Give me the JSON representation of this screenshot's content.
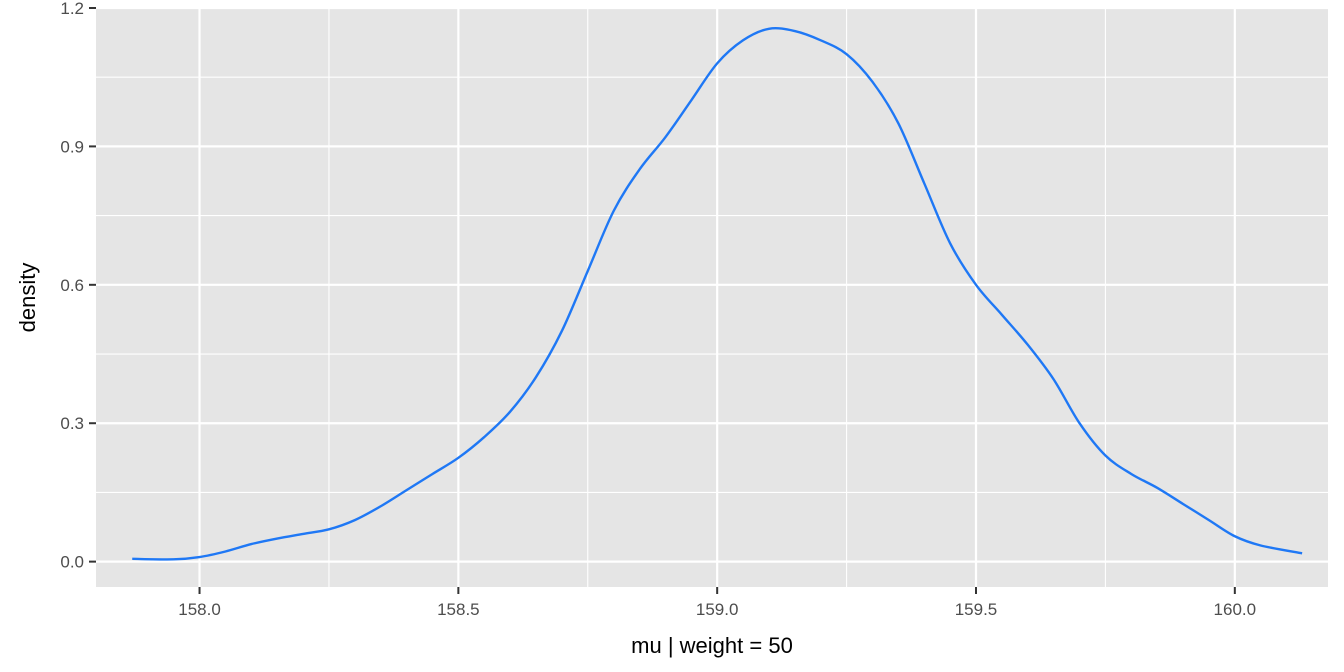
{
  "chart_data": {
    "type": "line",
    "title": "",
    "xlabel": "mu | weight = 50",
    "ylabel": "density",
    "xlim": [
      157.8,
      160.18
    ],
    "ylim": [
      -0.055,
      1.2
    ],
    "x_ticks": [
      158.0,
      158.5,
      159.0,
      159.5,
      160.0
    ],
    "x_tick_labels": [
      "158.0",
      "158.5",
      "159.0",
      "159.5",
      "160.0"
    ],
    "y_ticks": [
      0.0,
      0.3,
      0.6,
      0.9,
      1.2
    ],
    "y_tick_labels": [
      "0.0",
      "0.3",
      "0.6",
      "0.9",
      "1.2"
    ],
    "grid": true,
    "colors": {
      "panel": "#e5e5e5",
      "grid": "#ffffff",
      "line": "#1f78f5"
    },
    "series": [
      {
        "x": [
          157.87,
          157.95,
          158.0,
          158.05,
          158.1,
          158.15,
          158.2,
          158.25,
          158.3,
          158.35,
          158.4,
          158.45,
          158.5,
          158.55,
          158.6,
          158.65,
          158.7,
          158.75,
          158.8,
          158.85,
          158.9,
          158.95,
          159.0,
          159.05,
          159.1,
          159.15,
          159.2,
          159.25,
          159.3,
          159.35,
          159.4,
          159.45,
          159.5,
          159.55,
          159.6,
          159.65,
          159.7,
          159.75,
          159.8,
          159.85,
          159.9,
          159.95,
          160.0,
          160.05,
          160.13
        ],
        "y": [
          0.006,
          0.005,
          0.01,
          0.022,
          0.038,
          0.05,
          0.06,
          0.07,
          0.09,
          0.12,
          0.155,
          0.19,
          0.225,
          0.27,
          0.325,
          0.4,
          0.5,
          0.63,
          0.76,
          0.85,
          0.92,
          1.0,
          1.08,
          1.13,
          1.155,
          1.15,
          1.13,
          1.1,
          1.04,
          0.95,
          0.82,
          0.69,
          0.6,
          0.535,
          0.47,
          0.395,
          0.3,
          0.23,
          0.19,
          0.16,
          0.125,
          0.09,
          0.055,
          0.035,
          0.018
        ]
      }
    ]
  }
}
